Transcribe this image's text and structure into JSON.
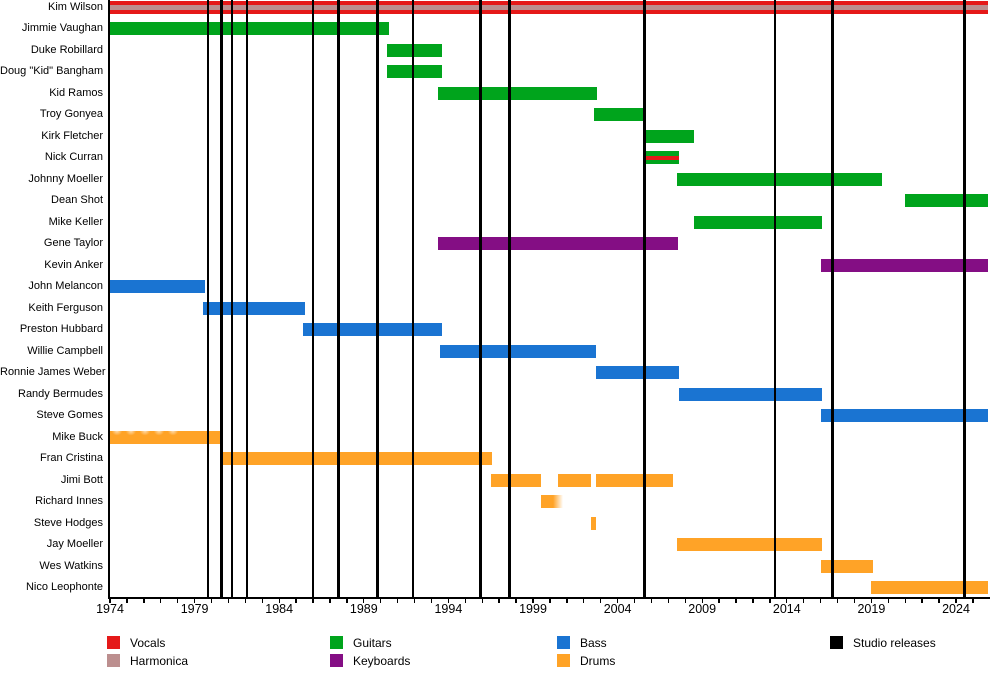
{
  "chart_data": {
    "type": "timeline",
    "title": "",
    "x_axis": {
      "start": 1974,
      "end": 2025.9,
      "tick_every": 1,
      "label_every": 5,
      "tick_labels": [
        "1974",
        "1979",
        "1984",
        "1989",
        "1994",
        "1999",
        "2004",
        "2009",
        "2014",
        "2019",
        "2024"
      ]
    },
    "roles": {
      "vocals": "#e51919",
      "harmonica": "#bc8f8f",
      "guitars": "#00a41c",
      "keyboards": "#840e84",
      "bass": "#1a74d2",
      "drums": "#ffa327",
      "releases": "#000000"
    },
    "members": [
      {
        "name": "Kim Wilson",
        "role": "vocals",
        "segments": [
          [
            1974.0,
            2025.9
          ]
        ],
        "overlay": {
          "role": "harmonica",
          "segments": [
            [
              1974.0,
              2025.9
            ]
          ]
        }
      },
      {
        "name": "Jimmie Vaughan",
        "role": "guitars",
        "segments": [
          [
            1974.0,
            1990.5
          ]
        ]
      },
      {
        "name": "Duke Robillard",
        "role": "guitars",
        "segments": [
          [
            1990.4,
            1993.6
          ]
        ]
      },
      {
        "name": "Doug \"Kid\" Bangham",
        "role": "guitars",
        "segments": [
          [
            1990.4,
            1993.6
          ]
        ]
      },
      {
        "name": "Kid Ramos",
        "role": "guitars",
        "segments": [
          [
            1993.4,
            2002.8
          ]
        ]
      },
      {
        "name": "Troy Gonyea",
        "role": "guitars",
        "segments": [
          [
            2002.6,
            2005.6
          ]
        ]
      },
      {
        "name": "Kirk Fletcher",
        "role": "guitars",
        "segments": [
          [
            2005.5,
            2008.5
          ]
        ]
      },
      {
        "name": "Nick Curran",
        "role": "guitars",
        "segments": [
          [
            2005.5,
            2007.6
          ]
        ],
        "overlay": {
          "role": "vocals",
          "segments": [
            [
              2005.5,
              2007.6
            ]
          ]
        }
      },
      {
        "name": "Johnny Moeller",
        "role": "guitars",
        "segments": [
          [
            2007.5,
            2019.6
          ]
        ]
      },
      {
        "name": "Dean Shot",
        "role": "guitars",
        "segments": [
          [
            2021.0,
            2025.9
          ]
        ]
      },
      {
        "name": "Mike Keller",
        "role": "guitars",
        "segments": [
          [
            2008.5,
            2016.1
          ]
        ]
      },
      {
        "name": "Gene Taylor",
        "role": "keyboards",
        "segments": [
          [
            1993.4,
            2007.6
          ]
        ]
      },
      {
        "name": "Kevin Anker",
        "role": "keyboards",
        "segments": [
          [
            2016.0,
            2025.9
          ]
        ]
      },
      {
        "name": "John Melancon",
        "role": "bass",
        "segments": [
          [
            1974.0,
            1979.6
          ]
        ]
      },
      {
        "name": "Keith Ferguson",
        "role": "bass",
        "segments": [
          [
            1979.5,
            1985.5
          ]
        ]
      },
      {
        "name": "Preston Hubbard",
        "role": "bass",
        "segments": [
          [
            1985.4,
            1993.6
          ]
        ]
      },
      {
        "name": "Willie Campbell",
        "role": "bass",
        "segments": [
          [
            1993.5,
            2002.7
          ]
        ]
      },
      {
        "name": "Ronnie James Weber",
        "role": "bass",
        "segments": [
          [
            2002.7,
            2007.6
          ]
        ]
      },
      {
        "name": "Randy Bermudes",
        "role": "bass",
        "segments": [
          [
            2007.6,
            2016.1
          ]
        ]
      },
      {
        "name": "Steve Gomes",
        "role": "bass",
        "segments": [
          [
            2016.0,
            2025.9
          ]
        ]
      },
      {
        "name": "Mike Buck",
        "role": "drums",
        "segments": [
          [
            1974.0,
            1980.6
          ]
        ],
        "fade_left": true
      },
      {
        "name": "Fran Cristina",
        "role": "drums",
        "segments": [
          [
            1980.6,
            1996.6
          ]
        ]
      },
      {
        "name": "Jimi Bott",
        "role": "drums",
        "segments": [
          [
            1996.5,
            1999.5
          ],
          [
            2000.5,
            2002.4
          ],
          [
            2002.7,
            2007.3
          ]
        ]
      },
      {
        "name": "Richard Innes",
        "role": "drums",
        "segments": [
          [
            1999.5,
            2000.8
          ]
        ],
        "fade_right": true
      },
      {
        "name": "Steve Hodges",
        "role": "drums",
        "segments": [
          [
            2002.4,
            2002.7
          ]
        ]
      },
      {
        "name": "Jay Moeller",
        "role": "drums",
        "segments": [
          [
            2007.5,
            2016.1
          ]
        ]
      },
      {
        "name": "Wes Watkins",
        "role": "drums",
        "segments": [
          [
            2016.0,
            2019.1
          ]
        ]
      },
      {
        "name": "Nico Leophonte",
        "role": "drums",
        "segments": [
          [
            2019.0,
            2025.9
          ]
        ]
      }
    ],
    "releases": [
      1979.8,
      1980.6,
      1981.2,
      1982.1,
      1986.0,
      1987.5,
      1989.8,
      1991.9,
      1995.9,
      1997.6,
      2005.6,
      2013.3,
      2016.7,
      2024.5
    ],
    "legend": {
      "columns": [
        [
          {
            "label": "Vocals",
            "role": "vocals"
          },
          {
            "label": "Harmonica",
            "role": "harmonica"
          }
        ],
        [
          {
            "label": "Guitars",
            "role": "guitars"
          },
          {
            "label": "Keyboards",
            "role": "keyboards"
          }
        ],
        [
          {
            "label": "Bass",
            "role": "bass"
          },
          {
            "label": "Drums",
            "role": "drums"
          }
        ],
        [
          {
            "label": "Studio releases",
            "role": "releases"
          }
        ]
      ]
    }
  }
}
